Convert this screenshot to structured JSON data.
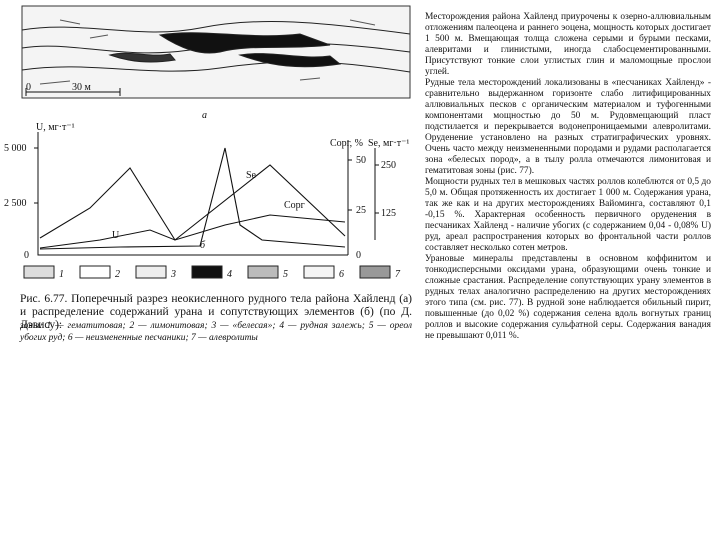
{
  "figure": {
    "sketch": {
      "scale_start": "0",
      "scale_end": "30 м",
      "label": "а"
    },
    "chart": {
      "u_axis_label": "U, мг·т⁻¹",
      "u_ticks": [
        "5 000",
        "2 500",
        "0"
      ],
      "corg_axis_label": "Cорг, %",
      "corg_ticks": [
        "50",
        "25",
        "0"
      ],
      "se_axis_label": "Se, мг·т⁻¹",
      "se_ticks": [
        "250",
        "125"
      ],
      "curve_labels": [
        "Se",
        "Cорг",
        "U"
      ],
      "label": "б"
    },
    "legend": [
      "1",
      "2",
      "3",
      "4",
      "5",
      "6",
      "7"
    ],
    "caption": "Рис. 6.77. Поперечный разрез неокисленного рудного тела района Хайленд (а) и распределение содержаний урана и сопутствующих элементов (б) (по Д. Дэвису):",
    "caption_zones": "зоны: 1 — гематитовая; 2 — лимонитовая; 3 — «белесая»; 4 — рудная залежь; 5 — ореол убогих руд; 6 — неизмененные песчаники; 7 — алевролиты"
  },
  "text": {
    "paragraphs": [
      "Месторождения района Хайленд приурочены к озерно-аллювиальным отложениям палеоцена и раннего эоцена, мощность которых достигает 1 500 м. Вмещающая толща сложена серыми и бурыми песками, алевритами и глинистыми, иногда слабосцементированными. Присутствуют тонкие слои углистых глин и маломощные прослои углей.",
      "Рудные тела месторождений локализованы в «песчаниках Хайленд» - сравнительно выдержанном горизонте слабо литифицированных аллювиальных песков с органическим материалом и туфогенными компонентами мощностью до 50 м. Рудовмещающий пласт подстилается и перекрывается водонепроницаемыми алевролитами. Оруденение установлено на разных стратиграфических уровнях. Очень часто между неизмененными породами и рудами располагается зона «белесых пород», а в тылу ролла отмечаются лимонитовая и гематитовая зоны (рис. 77).",
      "Мощности рудных тел в мешковых частях роллов колеблются от 0,5 до 5,0 м. Общая протяженность их достигает 1 000 м. Содержания урана, так же как и на других месторождениях Вайоминга, составляют 0,1 -0,15 %. Характерная особенность первичного оруденения в песчаниках Хайленд - наличие убогих (с содержанием 0,04 - 0,08% U) руд, ареал распространения которых во фронтальной части роллов составляет несколько сотен метров.",
      "Урановые минералы представлены в основном коффинитом и тонкодисперсными оксидами урана, образующими очень тонкие и сложные срастания. Распределение сопутствующих урану элементов в рудных телах аналогично распределению на других месторождениях этого типа (см. рис. 77). В рудной зоне наблюдается обильный пирит, повышенные (до 0,02 %) содержания селена вдоль вогнутых границ роллов и высокие содержания сульфатной серы. Содержания ванадия не превышают 0,011 %."
    ]
  }
}
